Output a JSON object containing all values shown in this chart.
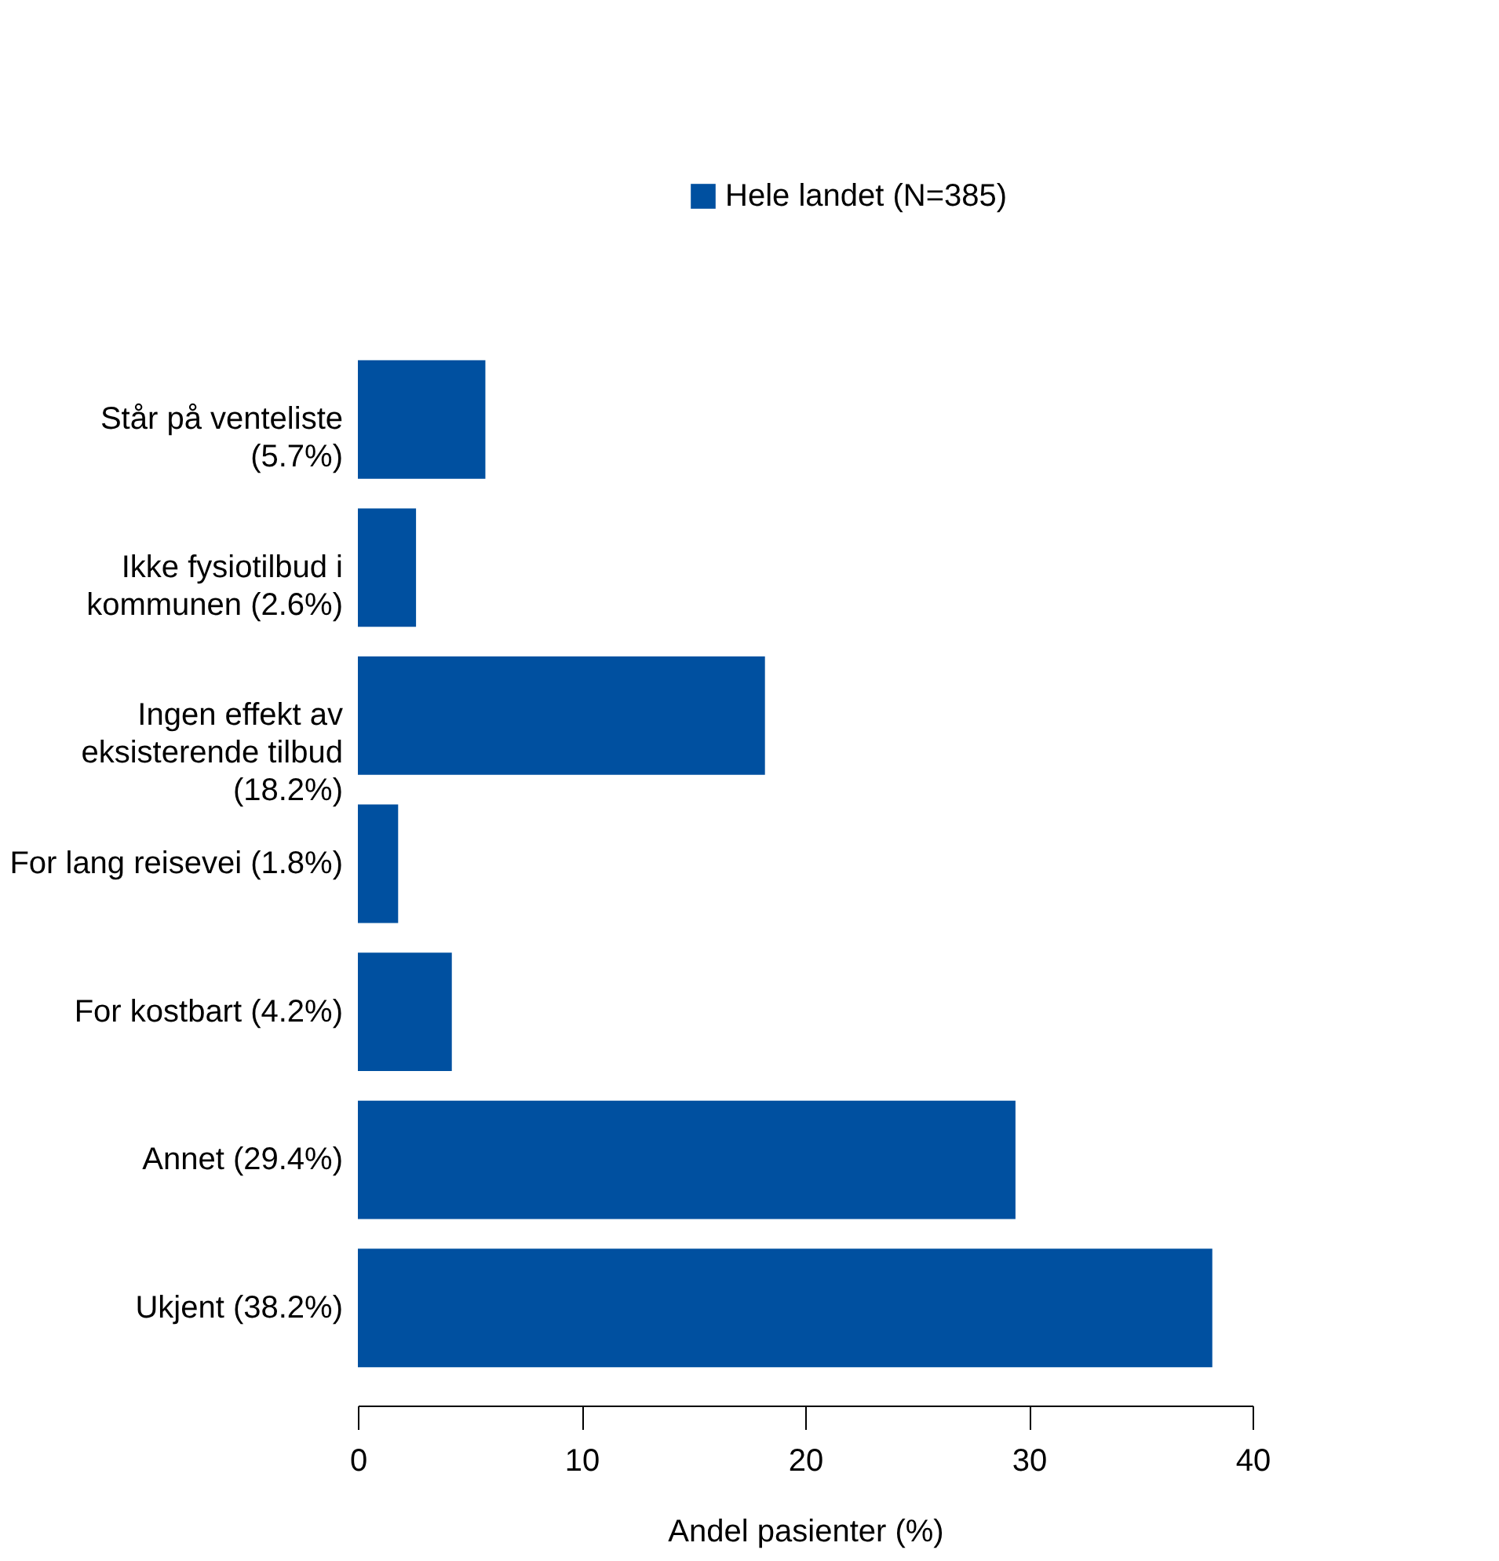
{
  "chart_data": {
    "type": "bar",
    "orientation": "horizontal",
    "xlabel": "Andel pasienter (%)",
    "categories": [
      "Står på venteliste (5.7%)",
      "Ikke fysiotilbud i kommunen (2.6%)",
      "Ingen effekt av eksisterende tilbud (18.2%)",
      "For lang reisevei (1.8%)",
      "For kostbart (4.2%)",
      "Annet (29.4%)",
      "Ukjent (38.2%)"
    ],
    "series": [
      {
        "name": "Hele landet (N=385)",
        "color": "#0050a0",
        "values": [
          5.7,
          2.6,
          18.2,
          1.8,
          4.2,
          29.4,
          38.2
        ]
      }
    ],
    "xlim": [
      0,
      40
    ],
    "xticks": [
      0,
      10,
      20,
      30,
      40
    ],
    "grid": false,
    "legend": "top right"
  }
}
